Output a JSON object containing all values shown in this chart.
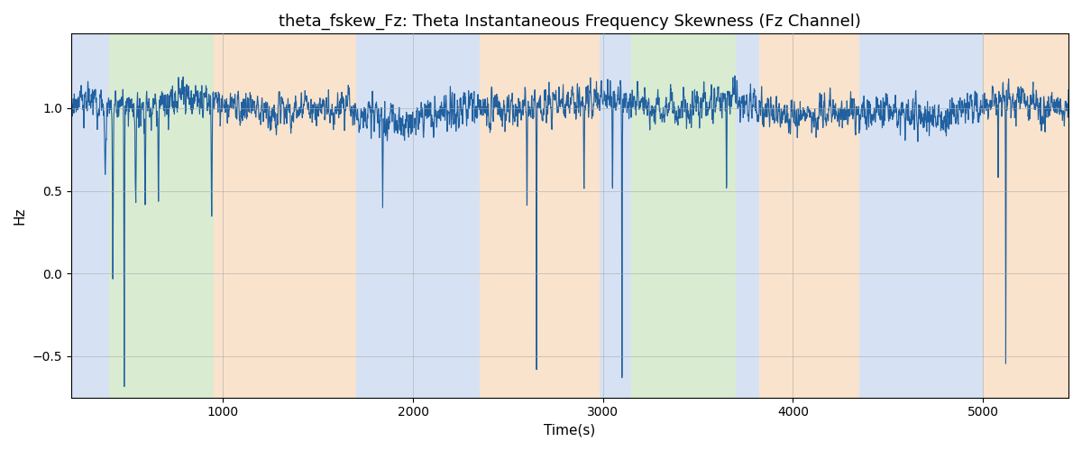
{
  "title": "theta_fskew_Fz: Theta Instantaneous Frequency Skewness (Fz Channel)",
  "xlabel": "Time(s)",
  "ylabel": "Hz",
  "xlim": [
    200,
    5450
  ],
  "ylim": [
    -0.75,
    1.45
  ],
  "line_color": "#2060a0",
  "line_width": 0.8,
  "background_color": "#ffffff",
  "grid_color": "#aaaaaa",
  "title_fontsize": 13,
  "label_fontsize": 11,
  "bands": [
    {
      "xmin": 200,
      "xmax": 400,
      "color": "#aec6e8",
      "alpha": 0.5
    },
    {
      "xmin": 400,
      "xmax": 950,
      "color": "#b5d9a5",
      "alpha": 0.5
    },
    {
      "xmin": 950,
      "xmax": 1700,
      "color": "#f5c89a",
      "alpha": 0.5
    },
    {
      "xmin": 1700,
      "xmax": 2350,
      "color": "#aec6e8",
      "alpha": 0.5
    },
    {
      "xmin": 2350,
      "xmax": 2980,
      "color": "#f5c89a",
      "alpha": 0.5
    },
    {
      "xmin": 2980,
      "xmax": 3150,
      "color": "#aec6e8",
      "alpha": 0.5
    },
    {
      "xmin": 3150,
      "xmax": 3700,
      "color": "#b5d9a5",
      "alpha": 0.5
    },
    {
      "xmin": 3700,
      "xmax": 3820,
      "color": "#aec6e8",
      "alpha": 0.5
    },
    {
      "xmin": 3820,
      "xmax": 4350,
      "color": "#f5c89a",
      "alpha": 0.5
    },
    {
      "xmin": 4350,
      "xmax": 5000,
      "color": "#aec6e8",
      "alpha": 0.5
    },
    {
      "xmin": 5000,
      "xmax": 5450,
      "color": "#f5c89a",
      "alpha": 0.5
    }
  ],
  "yticks": [
    -0.5,
    0.0,
    0.5,
    1.0
  ],
  "xticks": [
    1000,
    2000,
    3000,
    4000,
    5000
  ]
}
